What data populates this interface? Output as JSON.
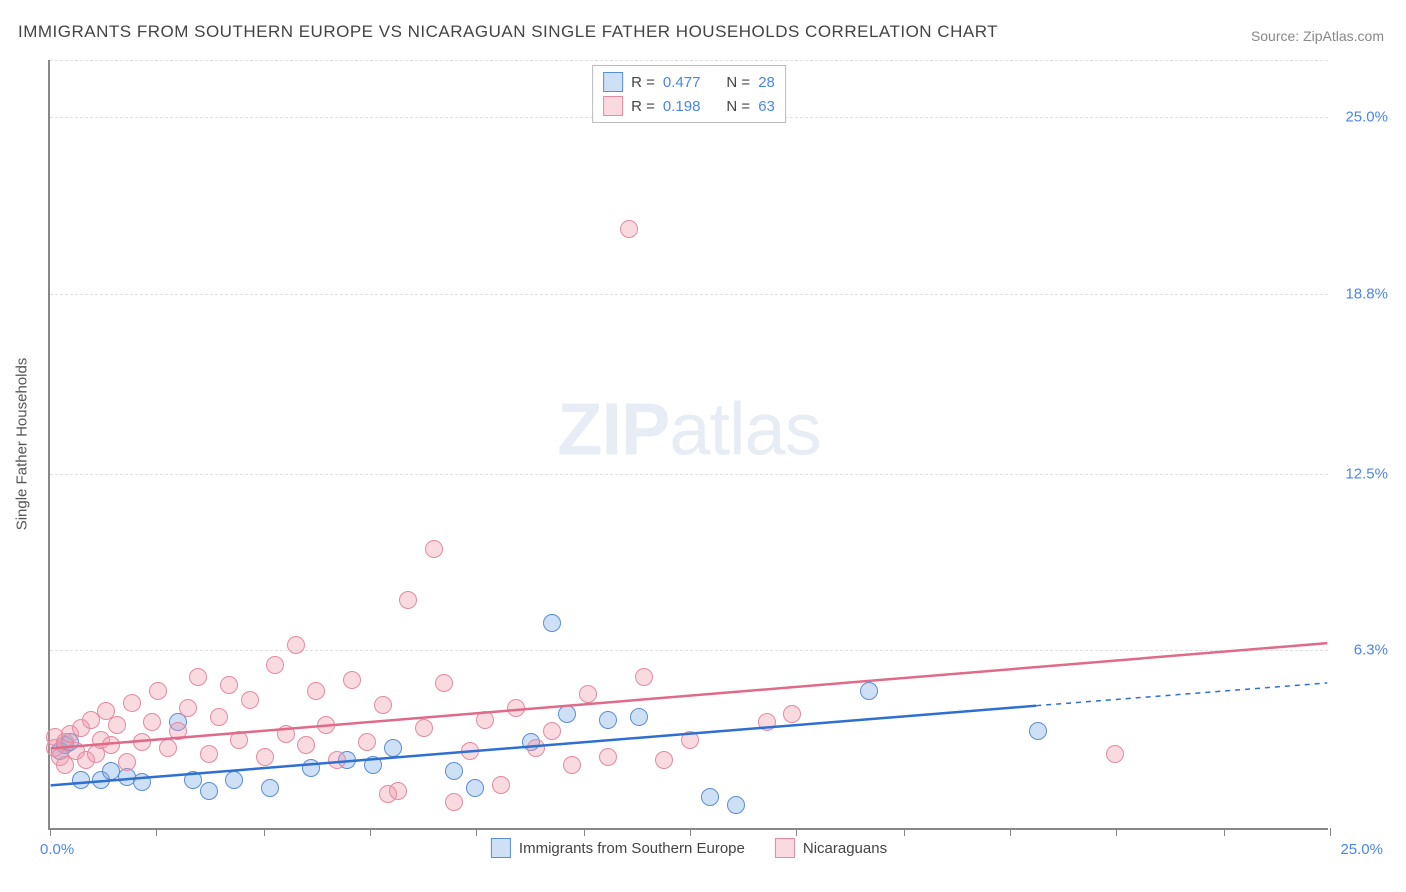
{
  "title": "IMMIGRANTS FROM SOUTHERN EUROPE VS NICARAGUAN SINGLE FATHER HOUSEHOLDS CORRELATION CHART",
  "source_prefix": "Source: ",
  "source_name": "ZipAtlas.com",
  "yaxis_title": "Single Father Households",
  "watermark_bold": "ZIP",
  "watermark_light": "atlas",
  "chart": {
    "type": "scatter",
    "xlim": [
      0,
      25
    ],
    "ylim": [
      0,
      27
    ],
    "xlabel_min": "0.0%",
    "xlabel_max": "25.0%",
    "xtick_positions": [
      0,
      2.08,
      4.17,
      6.25,
      8.33,
      10.42,
      12.5,
      14.58,
      16.67,
      18.75,
      20.83,
      22.92,
      25
    ],
    "yticks": [
      {
        "value": 6.3,
        "label": "6.3%"
      },
      {
        "value": 12.5,
        "label": "12.5%"
      },
      {
        "value": 18.8,
        "label": "18.8%"
      },
      {
        "value": 25.0,
        "label": "25.0%"
      }
    ],
    "background_color": "#ffffff",
    "grid_color": "#e0e0e0",
    "axis_color": "#888888",
    "label_color": "#4a86e8",
    "marker_radius": 9,
    "series": [
      {
        "id": "blue",
        "name": "Immigrants from Southern Europe",
        "fill": "rgba(115,165,230,0.35)",
        "stroke": "#5b8dd6",
        "line_color": "#2e6fd0",
        "r_value": "0.477",
        "n_value": "28",
        "reg_start": {
          "x": 0,
          "y": 1.5
        },
        "reg_end_solid": {
          "x": 19.3,
          "y": 4.3
        },
        "reg_end_dash": {
          "x": 25,
          "y": 5.1
        },
        "points": [
          {
            "x": 0.2,
            "y": 2.7
          },
          {
            "x": 0.3,
            "y": 2.9
          },
          {
            "x": 0.4,
            "y": 3.0
          },
          {
            "x": 0.6,
            "y": 1.7
          },
          {
            "x": 1.0,
            "y": 1.7
          },
          {
            "x": 1.2,
            "y": 2.0
          },
          {
            "x": 1.5,
            "y": 1.8
          },
          {
            "x": 1.8,
            "y": 1.6
          },
          {
            "x": 2.5,
            "y": 3.7
          },
          {
            "x": 2.8,
            "y": 1.7
          },
          {
            "x": 3.1,
            "y": 1.3
          },
          {
            "x": 3.6,
            "y": 1.7
          },
          {
            "x": 4.3,
            "y": 1.4
          },
          {
            "x": 5.1,
            "y": 2.1
          },
          {
            "x": 5.8,
            "y": 2.4
          },
          {
            "x": 6.3,
            "y": 2.2
          },
          {
            "x": 6.7,
            "y": 2.8
          },
          {
            "x": 7.9,
            "y": 2.0
          },
          {
            "x": 8.3,
            "y": 1.4
          },
          {
            "x": 9.4,
            "y": 3.0
          },
          {
            "x": 9.8,
            "y": 7.2
          },
          {
            "x": 10.1,
            "y": 4.0
          },
          {
            "x": 10.9,
            "y": 3.8
          },
          {
            "x": 11.5,
            "y": 3.9
          },
          {
            "x": 12.9,
            "y": 1.1
          },
          {
            "x": 13.4,
            "y": 0.8
          },
          {
            "x": 16.0,
            "y": 4.8
          },
          {
            "x": 19.3,
            "y": 3.4
          }
        ]
      },
      {
        "id": "pink",
        "name": "Nicaraguans",
        "fill": "rgba(240,150,170,0.35)",
        "stroke": "#e58aa0",
        "line_color": "#e06a8a",
        "r_value": "0.198",
        "n_value": "63",
        "reg_start": {
          "x": 0,
          "y": 2.8
        },
        "reg_end_solid": {
          "x": 25,
          "y": 6.5
        },
        "reg_end_dash": null,
        "points": [
          {
            "x": 0.1,
            "y": 2.8
          },
          {
            "x": 0.1,
            "y": 3.2
          },
          {
            "x": 0.2,
            "y": 2.5
          },
          {
            "x": 0.3,
            "y": 3.0
          },
          {
            "x": 0.3,
            "y": 2.2
          },
          {
            "x": 0.4,
            "y": 3.3
          },
          {
            "x": 0.5,
            "y": 2.7
          },
          {
            "x": 0.6,
            "y": 3.5
          },
          {
            "x": 0.7,
            "y": 2.4
          },
          {
            "x": 0.8,
            "y": 3.8
          },
          {
            "x": 0.9,
            "y": 2.6
          },
          {
            "x": 1.0,
            "y": 3.1
          },
          {
            "x": 1.1,
            "y": 4.1
          },
          {
            "x": 1.2,
            "y": 2.9
          },
          {
            "x": 1.3,
            "y": 3.6
          },
          {
            "x": 1.5,
            "y": 2.3
          },
          {
            "x": 1.6,
            "y": 4.4
          },
          {
            "x": 1.8,
            "y": 3.0
          },
          {
            "x": 2.0,
            "y": 3.7
          },
          {
            "x": 2.1,
            "y": 4.8
          },
          {
            "x": 2.3,
            "y": 2.8
          },
          {
            "x": 2.5,
            "y": 3.4
          },
          {
            "x": 2.7,
            "y": 4.2
          },
          {
            "x": 2.9,
            "y": 5.3
          },
          {
            "x": 3.1,
            "y": 2.6
          },
          {
            "x": 3.3,
            "y": 3.9
          },
          {
            "x": 3.5,
            "y": 5.0
          },
          {
            "x": 3.7,
            "y": 3.1
          },
          {
            "x": 3.9,
            "y": 4.5
          },
          {
            "x": 4.2,
            "y": 2.5
          },
          {
            "x": 4.4,
            "y": 5.7
          },
          {
            "x": 4.6,
            "y": 3.3
          },
          {
            "x": 4.8,
            "y": 6.4
          },
          {
            "x": 5.0,
            "y": 2.9
          },
          {
            "x": 5.2,
            "y": 4.8
          },
          {
            "x": 5.4,
            "y": 3.6
          },
          {
            "x": 5.6,
            "y": 2.4
          },
          {
            "x": 5.9,
            "y": 5.2
          },
          {
            "x": 6.2,
            "y": 3.0
          },
          {
            "x": 6.5,
            "y": 4.3
          },
          {
            "x": 6.6,
            "y": 1.2
          },
          {
            "x": 6.8,
            "y": 1.3
          },
          {
            "x": 7.0,
            "y": 8.0
          },
          {
            "x": 7.3,
            "y": 3.5
          },
          {
            "x": 7.5,
            "y": 9.8
          },
          {
            "x": 7.7,
            "y": 5.1
          },
          {
            "x": 7.9,
            "y": 0.9
          },
          {
            "x": 8.2,
            "y": 2.7
          },
          {
            "x": 8.5,
            "y": 3.8
          },
          {
            "x": 8.8,
            "y": 1.5
          },
          {
            "x": 9.1,
            "y": 4.2
          },
          {
            "x": 9.5,
            "y": 2.8
          },
          {
            "x": 9.8,
            "y": 3.4
          },
          {
            "x": 10.2,
            "y": 2.2
          },
          {
            "x": 10.5,
            "y": 4.7
          },
          {
            "x": 10.9,
            "y": 2.5
          },
          {
            "x": 11.3,
            "y": 21.0
          },
          {
            "x": 11.6,
            "y": 5.3
          },
          {
            "x": 12.0,
            "y": 2.4
          },
          {
            "x": 12.5,
            "y": 3.1
          },
          {
            "x": 14.0,
            "y": 3.7
          },
          {
            "x": 14.5,
            "y": 4.0
          },
          {
            "x": 20.8,
            "y": 2.6
          }
        ]
      }
    ]
  },
  "legend_top": {
    "r_label": "R =",
    "n_label": "N ="
  }
}
